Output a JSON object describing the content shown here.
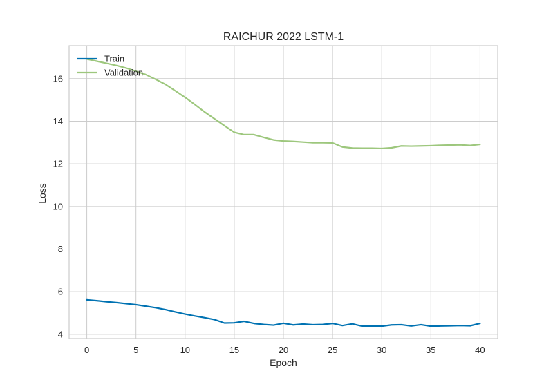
{
  "chart_data": {
    "type": "line",
    "title": "RAICHUR 2022 LSTM-1",
    "xlabel": "Epoch",
    "ylabel": "Loss",
    "xlim": [
      -1.8,
      41.8
    ],
    "ylim": [
      3.8,
      17.55
    ],
    "xticks": [
      0,
      5,
      10,
      15,
      20,
      25,
      30,
      35,
      40
    ],
    "yticks": [
      4,
      6,
      8,
      10,
      12,
      14,
      16
    ],
    "grid": true,
    "legend_position": "top-left",
    "series": [
      {
        "name": "Train",
        "color": "#0072B2",
        "x": [
          0,
          1,
          2,
          3,
          4,
          5,
          6,
          7,
          8,
          9,
          10,
          11,
          12,
          13,
          14,
          15,
          16,
          17,
          18,
          19,
          20,
          21,
          22,
          23,
          24,
          25,
          26,
          27,
          28,
          29,
          30,
          31,
          32,
          33,
          34,
          35,
          36,
          37,
          38,
          39,
          40
        ],
        "values": [
          5.62,
          5.58,
          5.53,
          5.49,
          5.44,
          5.39,
          5.32,
          5.25,
          5.16,
          5.05,
          4.95,
          4.86,
          4.78,
          4.69,
          4.53,
          4.54,
          4.61,
          4.51,
          4.46,
          4.43,
          4.52,
          4.44,
          4.48,
          4.45,
          4.46,
          4.51,
          4.41,
          4.49,
          4.38,
          4.39,
          4.38,
          4.44,
          4.45,
          4.39,
          4.45,
          4.38,
          4.39,
          4.4,
          4.41,
          4.4,
          4.51
        ]
      },
      {
        "name": "Validation",
        "color": "#9DC77D",
        "x": [
          0,
          1,
          2,
          3,
          4,
          5,
          6,
          7,
          8,
          9,
          10,
          11,
          12,
          13,
          14,
          15,
          16,
          17,
          18,
          19,
          20,
          21,
          22,
          23,
          24,
          25,
          26,
          27,
          28,
          29,
          30,
          31,
          32,
          33,
          34,
          35,
          36,
          37,
          38,
          39,
          40
        ],
        "values": [
          16.92,
          16.82,
          16.72,
          16.62,
          16.5,
          16.35,
          16.19,
          15.97,
          15.73,
          15.43,
          15.12,
          14.78,
          14.43,
          14.11,
          13.79,
          13.48,
          13.37,
          13.37,
          13.24,
          13.12,
          13.07,
          13.05,
          13.02,
          12.99,
          12.99,
          12.98,
          12.79,
          12.74,
          12.73,
          12.73,
          12.72,
          12.75,
          12.84,
          12.83,
          12.84,
          12.85,
          12.87,
          12.88,
          12.89,
          12.86,
          12.91
        ]
      }
    ]
  }
}
